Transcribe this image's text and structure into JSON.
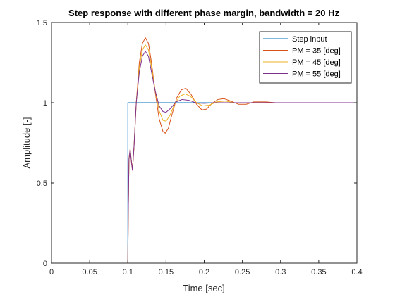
{
  "chart_data": {
    "type": "line",
    "title": "Step response with different phase margin, bandwidth = 20 Hz",
    "xlabel": "Time [sec]",
    "ylabel": "Amplitude [-]",
    "xlim": [
      0,
      0.4
    ],
    "ylim": [
      0,
      1.5
    ],
    "xticks": [
      0,
      0.05,
      0.1,
      0.15,
      0.2,
      0.25,
      0.3,
      0.35,
      0.4
    ],
    "xtick_labels": [
      "0",
      "0.05",
      "0.1",
      "0.15",
      "0.2",
      "0.25",
      "0.3",
      "0.35",
      "0.4"
    ],
    "yticks": [
      0,
      0.5,
      1,
      1.5
    ],
    "ytick_labels": [
      "0",
      "0.5",
      "1",
      "1.5"
    ],
    "grid": false,
    "legend_position": "top-right",
    "series": [
      {
        "name": "Step input",
        "color": "#0072BD",
        "points": [
          [
            0,
            0
          ],
          [
            0.1,
            0
          ],
          [
            0.1,
            1
          ],
          [
            0.4,
            1
          ]
        ]
      },
      {
        "name": "PM = 35 [deg]",
        "color": "#D95319",
        "points": [
          [
            0,
            0
          ],
          [
            0.1,
            0
          ],
          [
            0.1005,
            0.3
          ],
          [
            0.1015,
            0.65
          ],
          [
            0.103,
            0.71
          ],
          [
            0.1045,
            0.64
          ],
          [
            0.106,
            0.58
          ],
          [
            0.108,
            0.72
          ],
          [
            0.111,
            1.0
          ],
          [
            0.115,
            1.25
          ],
          [
            0.119,
            1.37
          ],
          [
            0.123,
            1.405
          ],
          [
            0.127,
            1.37
          ],
          [
            0.131,
            1.25
          ],
          [
            0.136,
            1.06
          ],
          [
            0.141,
            0.9
          ],
          [
            0.146,
            0.82
          ],
          [
            0.149,
            0.81
          ],
          [
            0.153,
            0.84
          ],
          [
            0.158,
            0.93
          ],
          [
            0.164,
            1.03
          ],
          [
            0.17,
            1.08
          ],
          [
            0.176,
            1.09
          ],
          [
            0.183,
            1.05
          ],
          [
            0.19,
            0.99
          ],
          [
            0.197,
            0.955
          ],
          [
            0.203,
            0.96
          ],
          [
            0.21,
            0.995
          ],
          [
            0.218,
            1.02
          ],
          [
            0.226,
            1.025
          ],
          [
            0.235,
            1.01
          ],
          [
            0.245,
            0.99
          ],
          [
            0.255,
            0.99
          ],
          [
            0.265,
            1.005
          ],
          [
            0.28,
            1.005
          ],
          [
            0.3,
            0.998
          ],
          [
            0.33,
            1.0
          ],
          [
            0.4,
            1.0
          ]
        ]
      },
      {
        "name": "PM = 45 [deg]",
        "color": "#EDB120",
        "points": [
          [
            0,
            0
          ],
          [
            0.1,
            0
          ],
          [
            0.1005,
            0.3
          ],
          [
            0.1015,
            0.65
          ],
          [
            0.103,
            0.71
          ],
          [
            0.1045,
            0.64
          ],
          [
            0.106,
            0.58
          ],
          [
            0.108,
            0.72
          ],
          [
            0.111,
            1.0
          ],
          [
            0.115,
            1.22
          ],
          [
            0.119,
            1.33
          ],
          [
            0.123,
            1.36
          ],
          [
            0.127,
            1.33
          ],
          [
            0.131,
            1.22
          ],
          [
            0.136,
            1.07
          ],
          [
            0.141,
            0.95
          ],
          [
            0.146,
            0.89
          ],
          [
            0.15,
            0.885
          ],
          [
            0.155,
            0.92
          ],
          [
            0.161,
            0.99
          ],
          [
            0.168,
            1.04
          ],
          [
            0.175,
            1.055
          ],
          [
            0.182,
            1.04
          ],
          [
            0.19,
            1.0
          ],
          [
            0.198,
            0.98
          ],
          [
            0.207,
            0.985
          ],
          [
            0.216,
            1.005
          ],
          [
            0.228,
            1.01
          ],
          [
            0.24,
            1.0
          ],
          [
            0.26,
            0.998
          ],
          [
            0.3,
            1.0
          ],
          [
            0.4,
            1.0
          ]
        ]
      },
      {
        "name": "PM = 55 [deg]",
        "color": "#7E2F8E",
        "points": [
          [
            0,
            0
          ],
          [
            0.1,
            0
          ],
          [
            0.1005,
            0.3
          ],
          [
            0.1015,
            0.65
          ],
          [
            0.103,
            0.71
          ],
          [
            0.1045,
            0.64
          ],
          [
            0.106,
            0.58
          ],
          [
            0.108,
            0.72
          ],
          [
            0.111,
            1.0
          ],
          [
            0.115,
            1.19
          ],
          [
            0.119,
            1.29
          ],
          [
            0.123,
            1.32
          ],
          [
            0.127,
            1.29
          ],
          [
            0.131,
            1.19
          ],
          [
            0.136,
            1.07
          ],
          [
            0.141,
            0.98
          ],
          [
            0.146,
            0.945
          ],
          [
            0.15,
            0.94
          ],
          [
            0.156,
            0.965
          ],
          [
            0.163,
            1.005
          ],
          [
            0.171,
            1.02
          ],
          [
            0.18,
            1.015
          ],
          [
            0.19,
            0.998
          ],
          [
            0.2,
            0.996
          ],
          [
            0.215,
            1.0
          ],
          [
            0.24,
            1.0
          ],
          [
            0.4,
            1.0
          ]
        ]
      }
    ]
  }
}
